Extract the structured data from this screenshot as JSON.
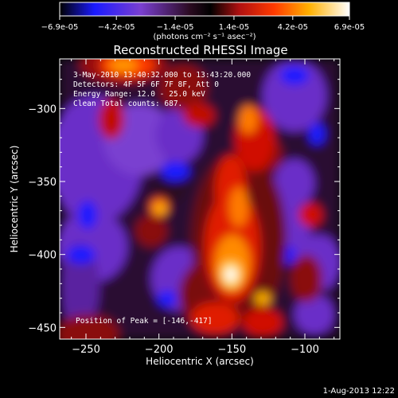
{
  "colorbar": {
    "tick_labels": [
      "-6.9e-05",
      "-4.2e-05",
      "-1.4e-05",
      "1.4e-05",
      "4.2e-05",
      "6.9e-05"
    ],
    "unit_label": "(photons cm⁻² s⁻¹ asec⁻²)",
    "min": -6.9e-05,
    "max": 6.9e-05,
    "colormap": "blue-purple-red-orange-yellow-white"
  },
  "chart_data": {
    "type": "heatmap",
    "title": "Reconstructed RHESSI Image",
    "xlabel": "Heliocentric X (arcsec)",
    "ylabel": "Heliocentric Y (arcsec)",
    "xlim": [
      -268,
      -76
    ],
    "ylim": [
      -458,
      -266
    ],
    "xticks": [
      -250,
      -200,
      -150,
      -100
    ],
    "yticks": [
      -300,
      -350,
      -400,
      -450
    ],
    "annotations": [
      "3-May-2010 13:40:32.000 to 13:43:20.000",
      "Detectors: 4F 5F 6F 7F 8F, Att 0",
      "Energy Range: 12.0 - 25.0 keV",
      "Clean     Total counts: 687."
    ],
    "peak_label": "Position of Peak = [-146,-417]",
    "peak": {
      "x": -146,
      "y": -417
    },
    "colors": {
      "background": "#000000",
      "text": "#ffffff"
    }
  },
  "footer": {
    "timestamp": "1-Aug-2013 12:22"
  }
}
